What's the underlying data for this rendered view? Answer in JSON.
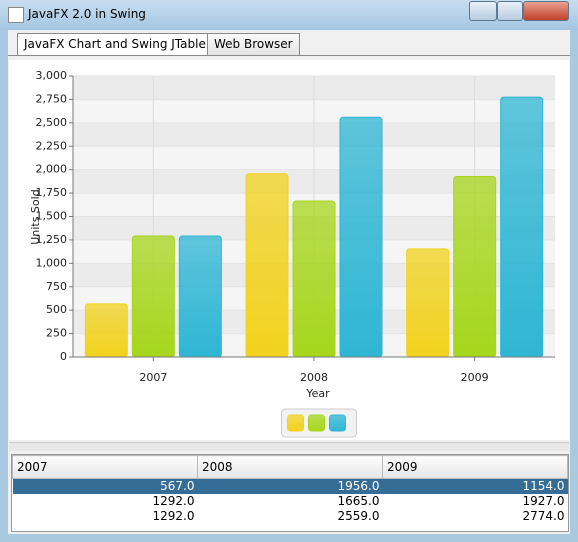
{
  "window": {
    "title": "JavaFX 2.0 in Swing"
  },
  "tabs": [
    "JavaFX Chart and Swing JTable",
    "Web Browser"
  ],
  "chart_data": {
    "type": "bar",
    "categories": [
      "2007",
      "2008",
      "2009"
    ],
    "series": [
      {
        "color": "#f2d21e",
        "values": [
          567,
          1956,
          1154
        ]
      },
      {
        "color": "#a6d61c",
        "values": [
          1292,
          1665,
          1927
        ]
      },
      {
        "color": "#2eb6d4",
        "values": [
          1292,
          2559,
          2774
        ]
      }
    ],
    "x_label": "Year",
    "y_label": "Units Sold",
    "ylim": [
      0,
      3000
    ],
    "yticks": [
      0,
      250,
      500,
      750,
      {
        "value": 1000,
        "label": "1,000"
      },
      {
        "value": 1250,
        "label": "1,250"
      },
      {
        "value": 1500,
        "label": "1,500"
      },
      {
        "value": 1750,
        "label": "1,750"
      },
      {
        "value": 2000,
        "label": "2,000"
      },
      {
        "value": 2250,
        "label": "2,250"
      },
      {
        "value": 2500,
        "label": "2,500"
      },
      {
        "value": 2750,
        "label": "2,750"
      },
      {
        "value": 3000,
        "label": "3,000"
      }
    ],
    "grid": true
  },
  "table": {
    "columns": [
      "2007",
      "2008",
      "2009"
    ],
    "rows": [
      [
        "567.0",
        "1956.0",
        "1154.0"
      ],
      [
        "1292.0",
        "1665.0",
        "1927.0"
      ],
      [
        "1292.0",
        "2559.0",
        "2774.0"
      ]
    ]
  }
}
